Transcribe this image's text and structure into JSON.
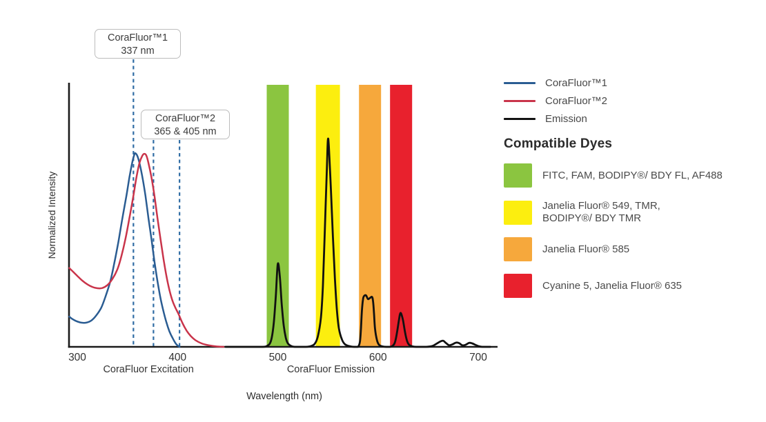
{
  "chart_data": {
    "type": "line",
    "title": "",
    "xlabel": "Wavelength (nm)",
    "ylabel": "Normalized Intensity",
    "x_ticks": [
      300,
      400,
      500,
      600,
      700
    ],
    "x_range": [
      292,
      719
    ],
    "y_range": [
      0,
      1
    ],
    "grid": false,
    "legend_position": "right",
    "axis_section_labels": [
      {
        "text": "CoraFluor Excitation",
        "center_nm": 371
      },
      {
        "text": "CoraFluor Emission",
        "center_nm": 553
      }
    ],
    "bands": [
      {
        "name": "FITC band",
        "color": "#8BC540",
        "nm_start": 489,
        "nm_end": 511
      },
      {
        "name": "Janelia Fluor 549 band",
        "color": "#FCEE0F",
        "nm_start": 538,
        "nm_end": 562
      },
      {
        "name": "Janelia Fluor 585 band",
        "color": "#F6A83C",
        "nm_start": 581,
        "nm_end": 603
      },
      {
        "name": "Cyanine 5 band",
        "color": "#E8212D",
        "nm_start": 612,
        "nm_end": 634
      }
    ],
    "series": [
      {
        "name": "CoraFluor™1",
        "color": "#2A5C92",
        "points": [
          [
            292,
            0.115
          ],
          [
            295,
            0.106
          ],
          [
            299,
            0.098
          ],
          [
            304,
            0.092
          ],
          [
            309,
            0.092
          ],
          [
            314,
            0.1
          ],
          [
            319,
            0.12
          ],
          [
            324,
            0.15
          ],
          [
            328,
            0.19
          ],
          [
            333,
            0.25
          ],
          [
            337,
            0.32
          ],
          [
            341,
            0.4
          ],
          [
            345,
            0.49
          ],
          [
            349,
            0.575
          ],
          [
            352,
            0.645
          ],
          [
            355,
            0.705
          ],
          [
            357,
            0.733
          ],
          [
            358,
            0.737
          ],
          [
            360,
            0.726
          ],
          [
            362,
            0.7
          ],
          [
            365,
            0.645
          ],
          [
            368,
            0.575
          ],
          [
            371,
            0.49
          ],
          [
            374,
            0.41
          ],
          [
            377,
            0.325
          ],
          [
            380,
            0.25
          ],
          [
            383,
            0.185
          ],
          [
            386,
            0.135
          ],
          [
            389,
            0.092
          ],
          [
            392,
            0.058
          ],
          [
            395,
            0.034
          ],
          [
            398,
            0.014
          ],
          [
            400,
            0.005
          ],
          [
            402,
            0
          ]
        ]
      },
      {
        "name": "CoraFluor™2",
        "color": "#C9344A",
        "points": [
          [
            292,
            0.3
          ],
          [
            296,
            0.285
          ],
          [
            300,
            0.27
          ],
          [
            305,
            0.252
          ],
          [
            310,
            0.238
          ],
          [
            315,
            0.228
          ],
          [
            320,
            0.223
          ],
          [
            325,
            0.224
          ],
          [
            330,
            0.235
          ],
          [
            335,
            0.258
          ],
          [
            340,
            0.295
          ],
          [
            344,
            0.345
          ],
          [
            348,
            0.41
          ],
          [
            352,
            0.49
          ],
          [
            356,
            0.575
          ],
          [
            359,
            0.645
          ],
          [
            362,
            0.7
          ],
          [
            365,
            0.728
          ],
          [
            367,
            0.735
          ],
          [
            369,
            0.727
          ],
          [
            371,
            0.7
          ],
          [
            374,
            0.645
          ],
          [
            377,
            0.575
          ],
          [
            380,
            0.49
          ],
          [
            383,
            0.41
          ],
          [
            386,
            0.335
          ],
          [
            389,
            0.268
          ],
          [
            392,
            0.215
          ],
          [
            395,
            0.175
          ],
          [
            398,
            0.148
          ],
          [
            401,
            0.125
          ],
          [
            405,
            0.09
          ],
          [
            409,
            0.062
          ],
          [
            413,
            0.042
          ],
          [
            418,
            0.025
          ],
          [
            424,
            0.013
          ],
          [
            431,
            0.006
          ],
          [
            438,
            0.002
          ],
          [
            446,
            0
          ]
        ]
      },
      {
        "name": "Emission",
        "color": "#111111",
        "points": [
          [
            448,
            0
          ],
          [
            470,
            0
          ],
          [
            485,
            0
          ],
          [
            489,
            0.003
          ],
          [
            492,
            0.012
          ],
          [
            494,
            0.035
          ],
          [
            496,
            0.09
          ],
          [
            498,
            0.19
          ],
          [
            500,
            0.315
          ],
          [
            502,
            0.27
          ],
          [
            504,
            0.16
          ],
          [
            506,
            0.08
          ],
          [
            508,
            0.035
          ],
          [
            510,
            0.014
          ],
          [
            513,
            0.004
          ],
          [
            517,
            0
          ],
          [
            528,
            0
          ],
          [
            533,
            0.003
          ],
          [
            537,
            0.012
          ],
          [
            540,
            0.04
          ],
          [
            543,
            0.11
          ],
          [
            545,
            0.23
          ],
          [
            547,
            0.45
          ],
          [
            549,
            0.68
          ],
          [
            550,
            0.787
          ],
          [
            551,
            0.76
          ],
          [
            553,
            0.6
          ],
          [
            555,
            0.42
          ],
          [
            557,
            0.26
          ],
          [
            559,
            0.14
          ],
          [
            561,
            0.07
          ],
          [
            564,
            0.028
          ],
          [
            567,
            0.01
          ],
          [
            571,
            0.003
          ],
          [
            576,
            0
          ],
          [
            580,
            0
          ],
          [
            582,
            0.02
          ],
          [
            583,
            0.07
          ],
          [
            584,
            0.14
          ],
          [
            585,
            0.18
          ],
          [
            586,
            0.193
          ],
          [
            588,
            0.196
          ],
          [
            590,
            0.182
          ],
          [
            592,
            0.186
          ],
          [
            594,
            0.19
          ],
          [
            595,
            0.175
          ],
          [
            596,
            0.13
          ],
          [
            597,
            0.07
          ],
          [
            599,
            0.025
          ],
          [
            601,
            0.008
          ],
          [
            604,
            0.002
          ],
          [
            608,
            0
          ],
          [
            612,
            0
          ],
          [
            615,
            0.005
          ],
          [
            617,
            0.018
          ],
          [
            619,
            0.055
          ],
          [
            621,
            0.105
          ],
          [
            622,
            0.125
          ],
          [
            623,
            0.127
          ],
          [
            625,
            0.1
          ],
          [
            627,
            0.055
          ],
          [
            629,
            0.022
          ],
          [
            631,
            0.008
          ],
          [
            634,
            0.002
          ],
          [
            638,
            0
          ],
          [
            648,
            0
          ],
          [
            654,
            0.003
          ],
          [
            658,
            0.011
          ],
          [
            662,
            0.02
          ],
          [
            665,
            0.023
          ],
          [
            668,
            0.014
          ],
          [
            671,
            0.006
          ],
          [
            674,
            0.009
          ],
          [
            678,
            0.016
          ],
          [
            681,
            0.014
          ],
          [
            684,
            0.006
          ],
          [
            687,
            0.007
          ],
          [
            691,
            0.015
          ],
          [
            694,
            0.013
          ],
          [
            697,
            0.008
          ],
          [
            700,
            0.003
          ],
          [
            704,
            0
          ],
          [
            712,
            0
          ]
        ]
      }
    ],
    "callouts": [
      {
        "lines": [
          "CoraFluor™1",
          "337 nm"
        ],
        "markers_nm": [
          356
        ]
      },
      {
        "lines": [
          "CoraFluor™2",
          "365 & 405 nm"
        ],
        "markers_nm": [
          376,
          402
        ]
      }
    ],
    "marker_color": "#2F6CA4",
    "axis_color": "#1a1a1a"
  },
  "legend": {
    "entries": [
      {
        "label": "CoraFluor™1",
        "color": "#2A5C92"
      },
      {
        "label": "CoraFluor™2",
        "color": "#C9344A"
      },
      {
        "label": "Emission",
        "color": "#111111"
      }
    ],
    "dyes_heading": "Compatible Dyes",
    "dyes": [
      {
        "color": "#8BC540",
        "lines": [
          "FITC, FAM, BODIPY®/ BDY FL, AF488"
        ]
      },
      {
        "color": "#FCEE0F",
        "lines": [
          "Janelia Fluor® 549, TMR,",
          "BODIPY®/ BDY TMR"
        ]
      },
      {
        "color": "#F6A83C",
        "lines": [
          "Janelia Fluor® 585"
        ]
      },
      {
        "color": "#E8212D",
        "lines": [
          "Cyanine 5, Janelia Fluor® 635"
        ]
      }
    ]
  }
}
